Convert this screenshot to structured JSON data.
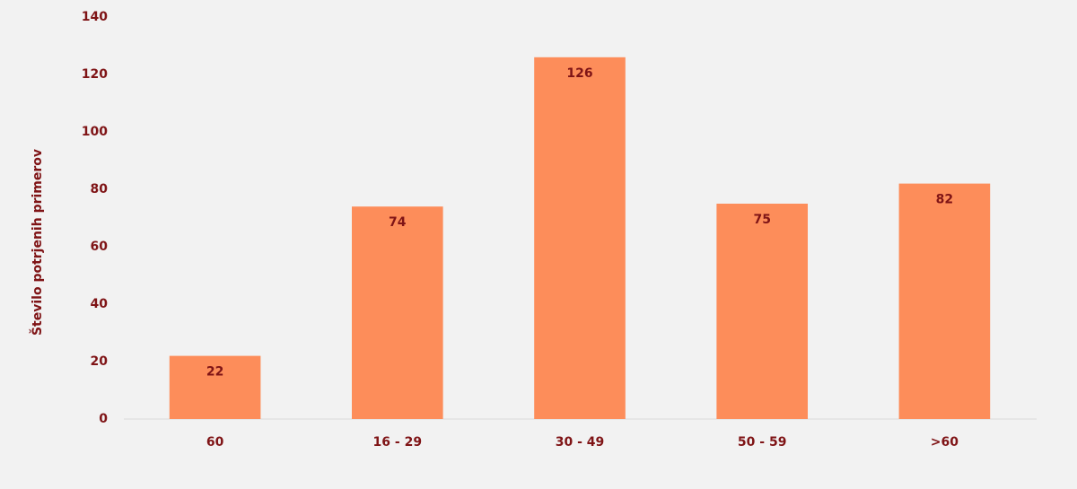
{
  "chart_data": {
    "type": "bar",
    "y_label": "Število potrjenih primerov",
    "categories": [
      "60",
      "16 - 29",
      "30 - 49",
      "50 - 59",
      ">60"
    ],
    "values": [
      22,
      74,
      126,
      75,
      82
    ],
    "color": "#fd8d5a",
    "ylim": [
      0,
      140
    ],
    "yticks": [
      0,
      20,
      40,
      60,
      80,
      100,
      120,
      140
    ],
    "grid": false
  }
}
